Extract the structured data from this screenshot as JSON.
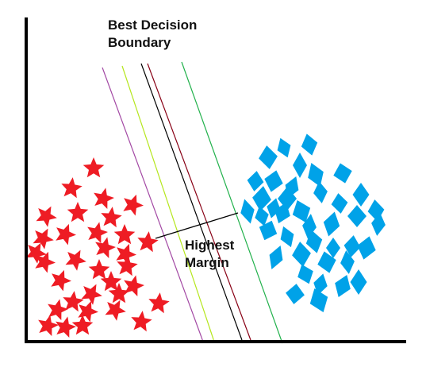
{
  "labels": {
    "title_line1": "Best Decision",
    "title_line2": "Boundary",
    "margin_line1": "Highest",
    "margin_line2": "Margin"
  },
  "colors": {
    "axis": "#000000",
    "class_a": "#ee1c24",
    "class_b": "#00a2e8",
    "pointer": "#000000"
  },
  "markers": {
    "class_a_shape": "star-icon",
    "class_b_shape": "diamond-icon",
    "class_a_count": 33,
    "class_b_count": 40
  },
  "boundary_lines": [
    {
      "name": "purple",
      "color": "#a349a4"
    },
    {
      "name": "yellow",
      "color": "#b5e61d"
    },
    {
      "name": "black",
      "color": "#000000"
    },
    {
      "name": "maroon",
      "color": "#880015"
    },
    {
      "name": "green",
      "color": "#22b14c"
    }
  ]
}
